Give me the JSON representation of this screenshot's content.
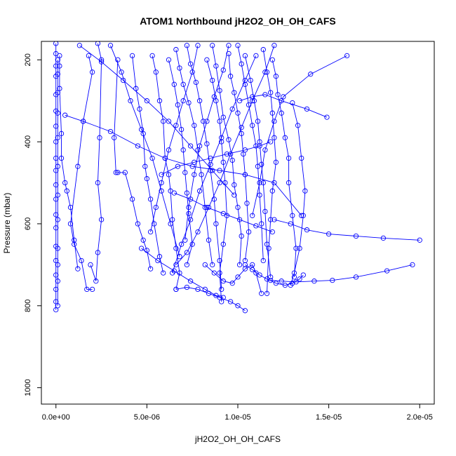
{
  "chart_data": {
    "type": "line",
    "title": "ATOM1 Northbound jH2O2_OH_OH_CAFS",
    "xlabel": "jH2O2_OH_OH_CAFS",
    "ylabel": "Pressure (mbar)",
    "xlim": [
      -8e-07,
      2.08e-05
    ],
    "ylim": [
      1040,
      155
    ],
    "y_reversed": true,
    "xticks": [
      0,
      5e-06,
      1e-05,
      1.5e-05,
      2e-05
    ],
    "xtick_labels": [
      "0.0e+00",
      "5.0e-06",
      "1.0e-05",
      "1.5e-05",
      "2.0e-05"
    ],
    "yticks": [
      200,
      400,
      600,
      800,
      1000
    ],
    "ytick_labels": [
      "200",
      "400",
      "600",
      "800",
      "1000"
    ],
    "grid": false,
    "legend": "none",
    "color": "#0000ff",
    "marker": "open-circle",
    "series": [
      {
        "x": [
          0,
          0,
          0,
          0,
          0,
          0,
          0,
          0,
          0,
          0,
          0,
          0,
          0,
          0,
          0,
          0,
          0,
          0,
          0,
          0
        ],
        "y": [
          160,
          185,
          215,
          240,
          285,
          325,
          362,
          400,
          440,
          470,
          505,
          540,
          578,
          610,
          655,
          690,
          725,
          760,
          790,
          810
        ]
      },
      {
        "x": [
          1e-07,
          1e-07,
          1e-07,
          1e-07,
          1e-07,
          1e-07,
          1e-07,
          1e-07,
          1e-07,
          1e-07,
          1e-07,
          1e-07
        ],
        "y": [
          200,
          235,
          280,
          330,
          390,
          460,
          530,
          590,
          660,
          700,
          740,
          800
        ]
      },
      {
        "x": [
          2e-07,
          2e-07,
          2e-07,
          3e-07,
          3e-07,
          5e-07,
          6e-07,
          8e-07,
          1e-06,
          1.2e-06
        ],
        "y": [
          190,
          215,
          270,
          380,
          440,
          500,
          520,
          560,
          640,
          710
        ]
      },
      {
        "x": [
          1.8e-06,
          2e-06,
          1.5e-06,
          1.2e-06,
          8e-07,
          1e-06,
          1.4e-06,
          1.7e-06,
          2e-06
        ],
        "y": [
          190,
          230,
          350,
          460,
          600,
          650,
          690,
          760,
          760
        ]
      },
      {
        "x": [
          2.3e-06,
          2.5e-06,
          2.4e-06,
          2.3e-06,
          2.5e-06,
          2.3e-06,
          2.2e-06,
          1.9e-06
        ],
        "y": [
          160,
          200,
          390,
          500,
          590,
          670,
          740,
          700
        ]
      },
      {
        "x": [
          3.4e-06,
          3.2e-06,
          3.3e-06,
          3.4e-06,
          3.8e-06,
          4.2e-06,
          4.5e-06,
          4.8e-06,
          5e-06,
          5.2e-06
        ],
        "y": [
          200,
          390,
          475,
          475,
          475,
          540,
          600,
          640,
          665,
          710
        ]
      },
      {
        "x": [
          4.2e-06,
          4.4e-06,
          4.6e-06,
          4.8e-06,
          4.9e-06,
          5e-06,
          5.2e-06,
          5.4e-06,
          5.7e-06,
          5.9e-06
        ],
        "y": [
          190,
          270,
          320,
          380,
          460,
          490,
          540,
          600,
          680,
          720
        ]
      },
      {
        "x": [
          5.3e-06,
          5.5e-06,
          5.7e-06,
          5.9e-06,
          6e-06,
          6.2e-06,
          6.3e-06,
          6.4e-06,
          6.6e-06,
          6.8e-06,
          6.6e-06
        ],
        "y": [
          190,
          230,
          300,
          350,
          440,
          480,
          520,
          590,
          660,
          720,
          760
        ]
      },
      {
        "x": [
          6.2e-06,
          6.5e-06,
          6.7e-06,
          6.9e-06,
          7e-06,
          7.1e-06,
          7.2e-06,
          7.3e-06,
          7.5e-06,
          7.2e-06
        ],
        "y": [
          200,
          260,
          310,
          370,
          420,
          475,
          525,
          575,
          650,
          700
        ]
      },
      {
        "x": [
          6.6e-06,
          6.8e-06,
          7e-06,
          7.3e-06,
          7.6e-06,
          7.8e-06,
          8e-06,
          8.2e-06,
          8.4e-06,
          8.6e-06
        ],
        "y": [
          175,
          220,
          260,
          305,
          360,
          420,
          480,
          560,
          640,
          700
        ]
      },
      {
        "x": [
          7.2e-06,
          7.4e-06,
          7.7e-06,
          7.9e-06,
          8.1e-06,
          8.3e-06,
          8.5e-06,
          8.7e-06,
          8.8e-06,
          9e-06,
          9.1e-06
        ],
        "y": [
          165,
          210,
          255,
          300,
          350,
          405,
          470,
          540,
          600,
          690,
          760
        ]
      },
      {
        "x": [
          8.3e-06,
          8.6e-06,
          8.8e-06,
          9e-06,
          9.1e-06,
          9.2e-06,
          9.3e-06,
          9.4e-06,
          9.2e-06,
          9e-06,
          9.1e-06
        ],
        "y": [
          200,
          250,
          300,
          350,
          400,
          450,
          500,
          580,
          650,
          720,
          790
        ]
      },
      {
        "x": [
          8.6e-06,
          8.8e-06,
          9e-06,
          9.2e-06,
          9.5e-06,
          9.7e-06,
          9.8e-06,
          1e-05,
          1.02e-05,
          1.01e-05
        ],
        "y": [
          165,
          215,
          275,
          340,
          395,
          445,
          505,
          560,
          630,
          700
        ]
      },
      {
        "x": [
          9.5e-06,
          9.6e-06,
          9.8e-06,
          1e-05,
          1.02e-05,
          1.03e-05,
          1.04e-05,
          1.05e-05,
          1.06e-05,
          1.04e-05
        ],
        "y": [
          185,
          240,
          280,
          330,
          380,
          430,
          480,
          550,
          620,
          690
        ]
      },
      {
        "x": [
          1e-05,
          1.02e-05,
          1.04e-05,
          1.06e-05,
          1.08e-05,
          1.1e-05,
          1.11e-05,
          1.12e-05,
          1.13e-05,
          1.14e-05
        ],
        "y": [
          165,
          210,
          260,
          310,
          360,
          410,
          460,
          530,
          600,
          690
        ]
      },
      {
        "x": [
          1.04e-05,
          1.07e-05,
          1.09e-05,
          1.11e-05,
          1.12e-05,
          1.13e-05,
          1.14e-05,
          1.15e-05,
          1.16e-05,
          1.18e-05
        ],
        "y": [
          190,
          250,
          300,
          350,
          400,
          455,
          500,
          570,
          650,
          730
        ]
      },
      {
        "x": [
          1.14e-05,
          1.16e-05,
          1.18e-05,
          1.19e-05,
          1.2e-05,
          1.21e-05,
          1.19e-05,
          1.18e-05,
          1.17e-05,
          1.16e-05
        ],
        "y": [
          175,
          230,
          280,
          330,
          390,
          450,
          520,
          590,
          660,
          770
        ]
      },
      {
        "x": [
          1.19e-05,
          1.21e-05,
          1.22e-05,
          1.24e-05,
          1.26e-05,
          1.28e-05,
          1.28e-05,
          1.3e-05,
          1.32e-05,
          1.31e-05
        ],
        "y": [
          200,
          240,
          285,
          330,
          390,
          440,
          500,
          580,
          660,
          730
        ]
      },
      {
        "x": [
          1.3e-05,
          1.33e-05,
          1.35e-05,
          1.37e-05,
          1.36e-05,
          1.34e-05,
          1.31e-05,
          1.29e-05
        ],
        "y": [
          305,
          360,
          440,
          520,
          580,
          660,
          720,
          750
        ]
      },
      {
        "x": [
          1.6e-05,
          1.4e-05,
          1.25e-05,
          1.2e-05,
          1.15e-05,
          1.12e-05,
          1.08e-05
        ],
        "y": [
          190,
          235,
          290,
          350,
          420,
          500,
          580
        ]
      },
      {
        "x": [
          1.49e-05,
          1.38e-05,
          1.24e-05,
          1.15e-05,
          1.08e-05,
          1.01e-05
        ],
        "y": [
          340,
          320,
          300,
          285,
          290,
          300
        ]
      },
      {
        "x": [
          2e-05,
          1.8e-05,
          1.65e-05,
          1.5e-05,
          1.38e-05,
          1.29e-05,
          1.2e-05
        ],
        "y": [
          640,
          635,
          630,
          625,
          615,
          600,
          590
        ]
      },
      {
        "x": [
          1.96e-05,
          1.82e-05,
          1.65e-05,
          1.52e-05,
          1.42e-05,
          1.32e-05,
          1.24e-05,
          1.18e-05
        ],
        "y": [
          700,
          715,
          730,
          738,
          740,
          742,
          740,
          738
        ]
      },
      {
        "x": [
          5e-07,
          1.5e-06,
          3e-06,
          4.5e-06,
          6e-06,
          7.5e-06,
          9e-06,
          1.04e-05,
          1.2e-05,
          1.35e-05
        ],
        "y": [
          335,
          350,
          375,
          410,
          440,
          460,
          470,
          480,
          500,
          580
        ]
      },
      {
        "x": [
          5.8e-06,
          6.7e-06,
          7.6e-06,
          8.5e-06,
          9.4e-06,
          1.04e-05,
          1.12e-05,
          1.18e-05
        ],
        "y": [
          480,
          460,
          450,
          440,
          430,
          420,
          410,
          400
        ]
      },
      {
        "x": [
          6.5e-06,
          7.4e-06,
          8.3e-06,
          9.2e-06,
          1.01e-05,
          1.1e-05,
          1.19e-05
        ],
        "y": [
          525,
          540,
          560,
          575,
          590,
          605,
          620
        ]
      },
      {
        "x": [
          4.7e-06,
          5.6e-06,
          6.5e-06,
          7.4e-06,
          8.2e-06,
          8.8e-06,
          9.2e-06
        ],
        "y": [
          660,
          690,
          715,
          740,
          760,
          775,
          780
        ]
      },
      {
        "x": [
          6.6e-06,
          7.2e-06,
          7.8e-06,
          8.4e-06,
          9e-06,
          9.6e-06,
          1e-05,
          1.04e-05
        ],
        "y": [
          760,
          755,
          760,
          770,
          780,
          790,
          800,
          812
        ]
      },
      {
        "x": [
          8.2e-06,
          8.7e-06,
          9.2e-06,
          9.7e-06,
          1e-05,
          1.04e-05,
          1.08e-05,
          1.1e-05,
          1.13e-05
        ],
        "y": [
          700,
          720,
          740,
          745,
          730,
          710,
          700,
          720,
          770
        ]
      },
      {
        "x": [
          1.04e-05,
          1.08e-05,
          1.12e-05,
          1.16e-05,
          1.21e-05,
          1.26e-05,
          1.3e-05,
          1.34e-05,
          1.36e-05
        ],
        "y": [
          700,
          712,
          725,
          735,
          745,
          750,
          745,
          735,
          725
        ]
      },
      {
        "x": [
          1.2e-05,
          1.15e-05,
          1.08e-05,
          1.02e-05,
          9.6e-06,
          9e-06,
          8.4e-06,
          7.8e-06,
          7.2e-06,
          6.6e-06
        ],
        "y": [
          165,
          230,
          300,
          365,
          430,
          500,
          560,
          620,
          670,
          700
        ]
      },
      {
        "x": [
          1.1e-05,
          1.04e-05,
          9.7e-06,
          9.1e-06,
          8.5e-06,
          7.9e-06,
          7.4e-06,
          6.9e-06,
          6.4e-06
        ],
        "y": [
          190,
          250,
          320,
          390,
          455,
          520,
          590,
          650,
          720
        ]
      },
      {
        "x": [
          1.3e-06,
          2.5e-06,
          3.7e-06,
          5e-06,
          6.2e-06,
          7.4e-06,
          8.6e-06,
          9.8e-06
        ],
        "y": [
          165,
          205,
          250,
          300,
          350,
          410,
          470,
          530
        ]
      },
      {
        "x": [
          3e-06,
          3.6e-06,
          4.1e-06,
          4.7e-06,
          5.3e-06,
          5.8e-06,
          6.3e-06,
          6.8e-06
        ],
        "y": [
          165,
          230,
          300,
          370,
          440,
          520,
          600,
          680
        ]
      },
      {
        "x": [
          7.8e-06,
          7.5e-06,
          7e-06,
          6.6e-06,
          6.2e-06,
          5.8e-06,
          5.5e-06,
          5.2e-06
        ],
        "y": [
          165,
          230,
          300,
          360,
          420,
          500,
          560,
          620
        ]
      },
      {
        "x": [
          9.5e-06,
          9.2e-06,
          8.7e-06,
          8.3e-06,
          7.9e-06,
          7.6e-06,
          7.3e-06,
          7.1e-06
        ],
        "y": [
          165,
          225,
          290,
          350,
          410,
          480,
          560,
          640
        ]
      }
    ]
  }
}
